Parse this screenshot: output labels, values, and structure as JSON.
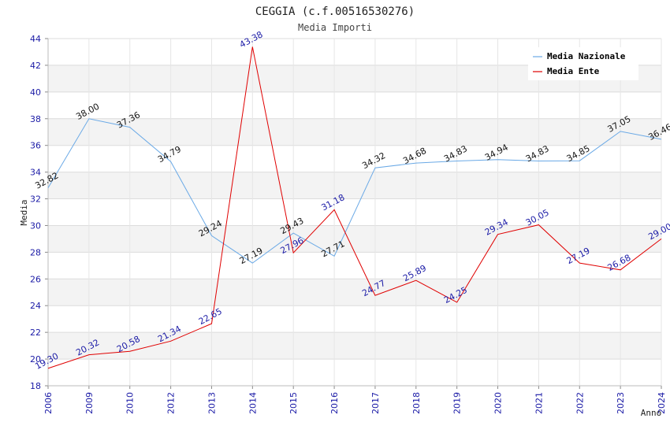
{
  "chart_data": {
    "type": "line",
    "title": "CEGGIA (c.f.00516530276)",
    "subtitle": "Media Importi",
    "xlabel": "Anno",
    "ylabel": "Media",
    "ylim": [
      18,
      44
    ],
    "yticks": [
      18,
      20,
      22,
      24,
      26,
      28,
      30,
      32,
      34,
      36,
      38,
      40,
      42,
      44
    ],
    "grid": true,
    "legend_position": "top-right",
    "categories": [
      "2006",
      "2009",
      "2010",
      "2012",
      "2013",
      "2014",
      "2015",
      "2016",
      "2017",
      "2018",
      "2019",
      "2020",
      "2021",
      "2022",
      "2023",
      "2024"
    ],
    "series": [
      {
        "name": "Media Nazionale",
        "color": "#6aa9e6",
        "values": [
          32.82,
          38.0,
          37.36,
          34.79,
          29.24,
          27.19,
          29.43,
          27.71,
          34.32,
          34.68,
          34.83,
          34.94,
          34.83,
          34.85,
          37.05,
          36.46
        ],
        "labels": [
          "32.82",
          "38.00",
          "37.36",
          "34.79",
          "29.24",
          "27.19",
          "29.43",
          "27.71",
          "34.32",
          "34.68",
          "34.83",
          "34.94",
          "34.83",
          "34.85",
          "37.05",
          "36.46"
        ]
      },
      {
        "name": "Media Ente",
        "color": "#e00000",
        "values": [
          19.3,
          20.32,
          20.58,
          21.34,
          22.65,
          43.38,
          27.96,
          31.18,
          24.77,
          25.89,
          24.25,
          29.34,
          30.05,
          27.19,
          26.68,
          29.0
        ],
        "labels": [
          "19.30",
          "20.32",
          "20.58",
          "21.34",
          "22.65",
          "43.38",
          "27.96",
          "31.18",
          "24.77",
          "25.89",
          "24.25",
          "29.34",
          "30.05",
          "27.19",
          "26.68",
          "29.00"
        ]
      }
    ]
  }
}
